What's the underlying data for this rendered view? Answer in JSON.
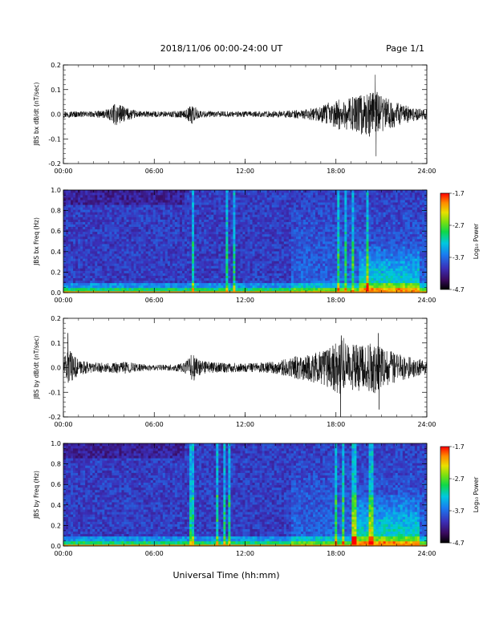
{
  "header": {
    "title": "2018/11/06  00:00-24:00 UT",
    "page": "Page 1/1"
  },
  "footer": {
    "xlabel": "Universal Time (hh:mm)"
  },
  "colorbar": {
    "label": "Log₁₀ Power",
    "ticks": [
      "-1.7",
      "-2.7",
      "-3.7",
      "-4.7"
    ],
    "values": [
      -1.7,
      -2.7,
      -3.7,
      -4.7
    ],
    "range": [
      -4.7,
      -1.7
    ]
  },
  "chart_data": [
    {
      "type": "line",
      "ylabel": "JBS bx dB/dt (nT/sec)",
      "xlim": [
        0,
        24
      ],
      "xticks": [
        "00:00",
        "06:00",
        "12:00",
        "18:00",
        "24:00"
      ],
      "ylim": [
        -0.2,
        0.2
      ],
      "yticks": [
        "0.2",
        "0.1",
        "0.0",
        "-0.1",
        "-0.2"
      ],
      "envelope": {
        "hour": [
          0,
          1,
          2,
          3,
          3.5,
          4,
          5,
          6,
          7,
          8,
          8.5,
          9,
          10,
          11,
          12,
          13,
          14,
          15,
          16,
          17,
          17.5,
          18,
          19,
          19.5,
          20,
          20.5,
          21,
          21.5,
          22,
          23,
          24
        ],
        "amplitude": [
          0.015,
          0.012,
          0.012,
          0.02,
          0.05,
          0.03,
          0.013,
          0.012,
          0.012,
          0.015,
          0.04,
          0.015,
          0.012,
          0.012,
          0.012,
          0.012,
          0.013,
          0.015,
          0.02,
          0.03,
          0.05,
          0.06,
          0.07,
          0.08,
          0.09,
          0.1,
          0.08,
          0.06,
          0.05,
          0.03,
          0.02
        ]
      },
      "peaks": [
        {
          "hour": 20.6,
          "value": 0.16
        },
        {
          "hour": 20.65,
          "value": -0.17
        }
      ]
    },
    {
      "type": "heatmap",
      "ylabel": "JBS bx Freq (Hz)",
      "xlim": [
        0,
        24
      ],
      "xticks": [
        "00:00",
        "06:00",
        "12:00",
        "18:00",
        "24:00"
      ],
      "ylim": [
        0,
        1.0
      ],
      "yticks": [
        "1.0",
        "0.8",
        "0.6",
        "0.4",
        "0.2",
        "0.0"
      ],
      "zlim": [
        -4.7,
        -1.7
      ],
      "bright_lines_hour": [
        8.55,
        10.8,
        11.3,
        18.2,
        18.6,
        19.1,
        20.1
      ],
      "enhanced_region": {
        "hour": [
          19.5,
          23.5
        ],
        "freq": [
          0.0,
          0.45
        ]
      }
    },
    {
      "type": "line",
      "ylabel": "JBS by dB/dt (nT/sec)",
      "xlim": [
        0,
        24
      ],
      "xticks": [
        "00:00",
        "06:00",
        "12:00",
        "18:00",
        "24:00"
      ],
      "ylim": [
        -0.2,
        0.2
      ],
      "yticks": [
        "0.2",
        "0.1",
        "0.0",
        "-0.1",
        "-0.2"
      ],
      "envelope": {
        "hour": [
          0,
          0.4,
          1,
          2,
          3,
          4,
          5,
          6,
          7,
          8,
          8.5,
          9,
          10,
          11,
          12,
          13,
          14,
          15,
          15.5,
          16,
          17,
          18,
          18.5,
          19,
          20,
          20.5,
          21,
          22,
          23,
          24
        ],
        "amplitude": [
          0.05,
          0.07,
          0.03,
          0.02,
          0.02,
          0.025,
          0.015,
          0.012,
          0.012,
          0.02,
          0.06,
          0.03,
          0.02,
          0.02,
          0.018,
          0.02,
          0.025,
          0.04,
          0.05,
          0.05,
          0.07,
          0.1,
          0.12,
          0.1,
          0.09,
          0.11,
          0.08,
          0.06,
          0.04,
          0.03
        ]
      },
      "peaks": [
        {
          "hour": 0.3,
          "value": 0.14
        },
        {
          "hour": 18.3,
          "value": -0.2
        },
        {
          "hour": 18.35,
          "value": 0.13
        },
        {
          "hour": 20.8,
          "value": 0.14
        },
        {
          "hour": 20.85,
          "value": -0.17
        }
      ]
    },
    {
      "type": "heatmap",
      "ylabel": "JBS by Freq (Hz)",
      "xlim": [
        0,
        24
      ],
      "xticks": [
        "00:00",
        "06:00",
        "12:00",
        "18:00",
        "24:00"
      ],
      "ylim": [
        0,
        1.0
      ],
      "yticks": [
        "1.0",
        "0.8",
        "0.6",
        "0.4",
        "0.2",
        "0.0"
      ],
      "zlim": [
        -4.7,
        -1.7
      ],
      "bright_lines_hour": [
        8.5,
        10.2,
        10.7,
        11.0,
        18.0,
        18.5,
        19.2,
        20.3
      ],
      "enhanced_region": {
        "hour": [
          19.0,
          23.5
        ],
        "freq": [
          0.0,
          0.5
        ]
      }
    }
  ]
}
